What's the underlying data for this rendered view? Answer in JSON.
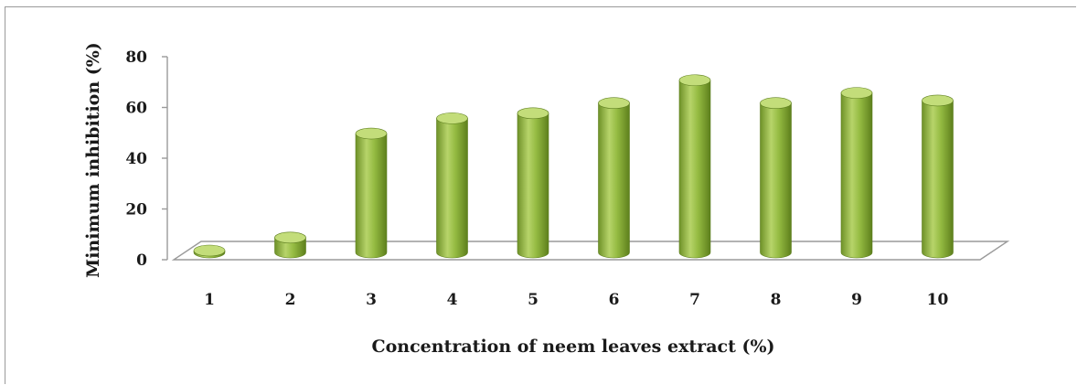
{
  "chart_data": {
    "type": "bar",
    "categories": [
      "1",
      "2",
      "3",
      "4",
      "5",
      "6",
      "7",
      "8",
      "9",
      "10"
    ],
    "values": [
      2,
      8,
      49,
      55,
      57,
      61,
      70,
      61,
      65,
      62
    ],
    "xlabel": "Concentration of neem leaves extract (%)",
    "ylabel": "Minimum inhibition (%)",
    "ylim": [
      0,
      80
    ],
    "yticks": [
      0,
      20,
      40,
      60,
      80
    ],
    "grid": false,
    "colors": {
      "bar": "#8db33a",
      "bar_dark": "#5e7f1f",
      "bar_light": "#c3dd7a"
    }
  }
}
